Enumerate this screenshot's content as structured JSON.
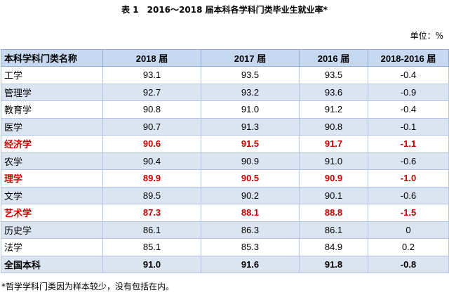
{
  "title": {
    "label": "表 1",
    "text": "2016～2018 届本科各学科门类毕业生就业率*"
  },
  "unit": "单位：%",
  "table": {
    "headers": [
      "本科学科门类名称",
      "2018 届",
      "2017 届",
      "2016 届",
      "2018-2016 届"
    ],
    "rows": [
      {
        "name": "工学",
        "v2018": "93.1",
        "v2017": "93.5",
        "v2016": "93.5",
        "diff": "-0.4",
        "highlight": false
      },
      {
        "name": "管理学",
        "v2018": "92.7",
        "v2017": "93.2",
        "v2016": "93.6",
        "diff": "-0.9",
        "highlight": false
      },
      {
        "name": "教育学",
        "v2018": "90.8",
        "v2017": "91.0",
        "v2016": "91.2",
        "diff": "-0.4",
        "highlight": false
      },
      {
        "name": "医学",
        "v2018": "90.7",
        "v2017": "91.3",
        "v2016": "90.8",
        "diff": "-0.1",
        "highlight": false
      },
      {
        "name": "经济学",
        "v2018": "90.6",
        "v2017": "91.5",
        "v2016": "91.7",
        "diff": "-1.1",
        "highlight": true
      },
      {
        "name": "农学",
        "v2018": "90.4",
        "v2017": "90.9",
        "v2016": "91.0",
        "diff": "-0.6",
        "highlight": false
      },
      {
        "name": "理学",
        "v2018": "89.9",
        "v2017": "90.5",
        "v2016": "90.9",
        "diff": "-1.0",
        "highlight": true
      },
      {
        "name": "文学",
        "v2018": "89.5",
        "v2017": "90.2",
        "v2016": "90.1",
        "diff": "-0.6",
        "highlight": false
      },
      {
        "name": "艺术学",
        "v2018": "87.3",
        "v2017": "88.1",
        "v2016": "88.8",
        "diff": "-1.5",
        "highlight": true
      },
      {
        "name": "历史学",
        "v2018": "86.1",
        "v2017": "86.3",
        "v2016": "86.1",
        "diff": "0",
        "highlight": false
      },
      {
        "name": "法学",
        "v2018": "85.1",
        "v2017": "85.3",
        "v2016": "84.9",
        "diff": "0.2",
        "highlight": false
      },
      {
        "name": "全国本科",
        "v2018": "91.0",
        "v2017": "91.6",
        "v2016": "91.8",
        "diff": "-0.8",
        "highlight": false,
        "total": true
      }
    ]
  },
  "footnote": "*哲学学科门类因为样本较少，没有包括在内。",
  "colors": {
    "header_bg": "#c6d9f1",
    "alt_row_bg": "#dbe5f1",
    "highlight_text": "#c00000"
  }
}
